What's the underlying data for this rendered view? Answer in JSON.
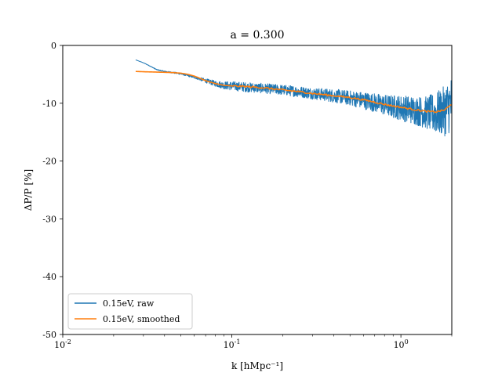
{
  "chart_data": {
    "type": "line",
    "title": "a = 0.300",
    "xlabel": "k [hMpc⁻¹]",
    "ylabel": "ΔP/P [%]",
    "xscale": "log",
    "xlim": [
      0.01,
      2.0
    ],
    "ylim": [
      -50,
      0
    ],
    "x_ticks": [
      {
        "value": 0.01,
        "base": "10",
        "exp": "-2"
      },
      {
        "value": 0.1,
        "base": "10",
        "exp": "-1"
      },
      {
        "value": 1,
        "base": "10",
        "exp": "0"
      }
    ],
    "y_ticks": [
      {
        "value": 0,
        "label": "0"
      },
      {
        "value": -10,
        "label": "-10"
      },
      {
        "value": -20,
        "label": "-20"
      },
      {
        "value": -30,
        "label": "-30"
      },
      {
        "value": -40,
        "label": "-40"
      },
      {
        "value": -50,
        "label": "-50"
      }
    ],
    "legend_position": "lower-left",
    "grid": false,
    "series": [
      {
        "name": "0.15eV, raw",
        "color": "#1f77b4",
        "noisy_band": true,
        "points": [
          [
            0.027,
            -2.5
          ],
          [
            0.03,
            -3.0
          ],
          [
            0.033,
            -3.6
          ],
          [
            0.036,
            -4.2
          ],
          [
            0.04,
            -4.5
          ],
          [
            0.045,
            -4.7
          ],
          [
            0.05,
            -4.9
          ],
          [
            0.055,
            -5.2
          ],
          [
            0.06,
            -5.5
          ],
          [
            0.065,
            -5.8
          ],
          [
            0.07,
            -6.1
          ],
          [
            0.08,
            -6.6
          ],
          [
            0.09,
            -6.9
          ],
          [
            0.1,
            -7.0
          ],
          [
            0.12,
            -7.2
          ],
          [
            0.15,
            -7.4
          ],
          [
            0.2,
            -7.7
          ],
          [
            0.25,
            -8.0
          ],
          [
            0.3,
            -8.3
          ],
          [
            0.4,
            -8.7
          ],
          [
            0.5,
            -9.1
          ],
          [
            0.6,
            -9.5
          ],
          [
            0.7,
            -9.9
          ],
          [
            0.8,
            -10.3
          ],
          [
            1.0,
            -10.8
          ],
          [
            1.2,
            -11.2
          ],
          [
            1.4,
            -11.6
          ],
          [
            1.6,
            -11.8
          ],
          [
            1.8,
            -11.4
          ],
          [
            2.0,
            -10.0
          ]
        ],
        "band_halfwidth": [
          [
            0.027,
            0.0
          ],
          [
            0.06,
            0.2
          ],
          [
            0.08,
            0.5
          ],
          [
            0.1,
            0.8
          ],
          [
            0.2,
            0.9
          ],
          [
            0.3,
            1.0
          ],
          [
            0.5,
            1.3
          ],
          [
            0.8,
            1.8
          ],
          [
            1.0,
            2.2
          ],
          [
            1.4,
            2.8
          ],
          [
            2.0,
            5.0
          ]
        ]
      },
      {
        "name": "0.15eV, smoothed",
        "color": "#ff7f0e",
        "noisy_band": false,
        "points": [
          [
            0.027,
            -4.5
          ],
          [
            0.03,
            -4.55
          ],
          [
            0.035,
            -4.6
          ],
          [
            0.04,
            -4.65
          ],
          [
            0.045,
            -4.7
          ],
          [
            0.05,
            -4.8
          ],
          [
            0.055,
            -5.0
          ],
          [
            0.06,
            -5.3
          ],
          [
            0.065,
            -5.7
          ],
          [
            0.07,
            -6.1
          ],
          [
            0.08,
            -6.6
          ],
          [
            0.09,
            -6.9
          ],
          [
            0.1,
            -7.0
          ],
          [
            0.12,
            -7.1
          ],
          [
            0.15,
            -7.3
          ],
          [
            0.2,
            -7.7
          ],
          [
            0.25,
            -8.0
          ],
          [
            0.3,
            -8.3
          ],
          [
            0.4,
            -8.7
          ],
          [
            0.5,
            -9.0
          ],
          [
            0.6,
            -9.4
          ],
          [
            0.7,
            -9.8
          ],
          [
            0.8,
            -10.2
          ],
          [
            1.0,
            -10.7
          ],
          [
            1.2,
            -11.1
          ],
          [
            1.4,
            -11.4
          ],
          [
            1.6,
            -11.5
          ],
          [
            1.8,
            -11.2
          ],
          [
            2.0,
            -10.2
          ]
        ]
      }
    ]
  }
}
